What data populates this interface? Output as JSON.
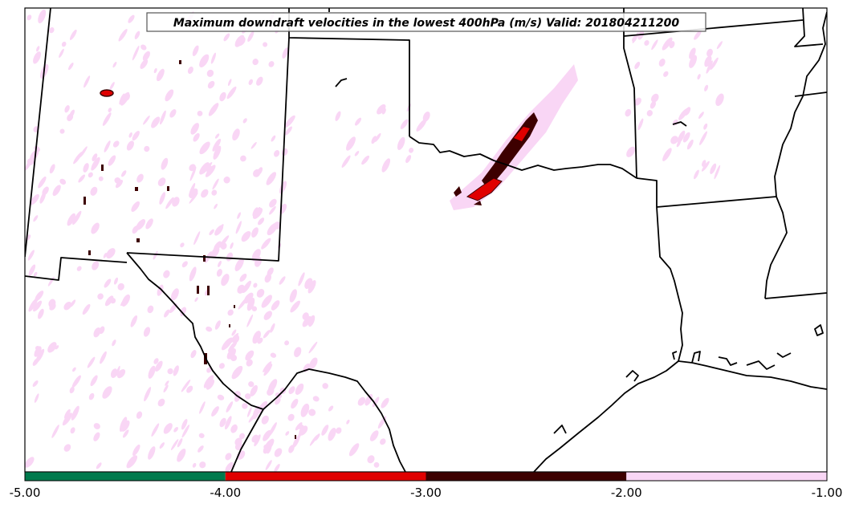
{
  "title": "Maximum downdraft velocities in the lowest 400hPa (m/s) Valid: 201804211200",
  "colorbar": {
    "tick_labels": [
      "-5.00",
      "-4.00",
      "-3.00",
      "-2.00",
      "-1.00"
    ],
    "bins": [
      {
        "from": -5.0,
        "to": -4.0,
        "color": "#007a4d"
      },
      {
        "from": -4.0,
        "to": -3.0,
        "color": "#e00000"
      },
      {
        "from": -3.0,
        "to": -2.0,
        "color": "#3d0000"
      },
      {
        "from": -2.0,
        "to": -1.0,
        "color": "#f9d6f5"
      }
    ]
  },
  "colors": {
    "light_pink": "#f9d6f5",
    "dark_red": "#3d0000",
    "red": "#e00000",
    "green": "#007a4d",
    "boundary": "#000000"
  }
}
